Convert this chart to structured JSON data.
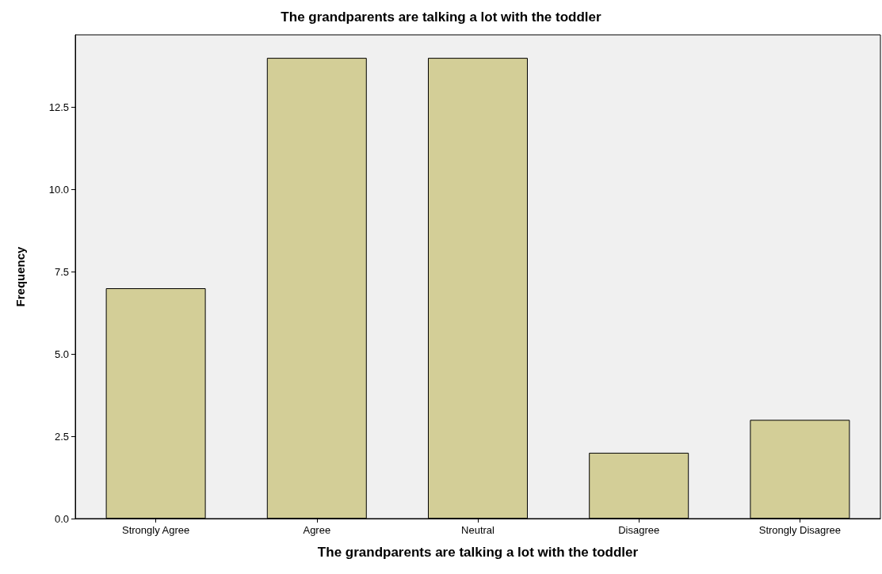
{
  "chart_data": {
    "type": "bar",
    "title": "The grandparents are talking a lot with the toddler",
    "xlabel": "The grandparents are talking a lot with the toddler",
    "ylabel": "Frequency",
    "categories": [
      "Strongly Agree",
      "Agree",
      "Neutral",
      "Disagree",
      "Strongly Disagree"
    ],
    "values": [
      7,
      14,
      14,
      2,
      3
    ],
    "color": "#d3ce97",
    "ylim": [
      0,
      14.7
    ],
    "yticks": [
      {
        "value": 0,
        "label": "0.0"
      },
      2.5,
      {
        "value": 5,
        "label": "5.0"
      },
      7.5,
      {
        "value": 10,
        "label": "10.0"
      },
      12.5
    ],
    "grid": false
  }
}
